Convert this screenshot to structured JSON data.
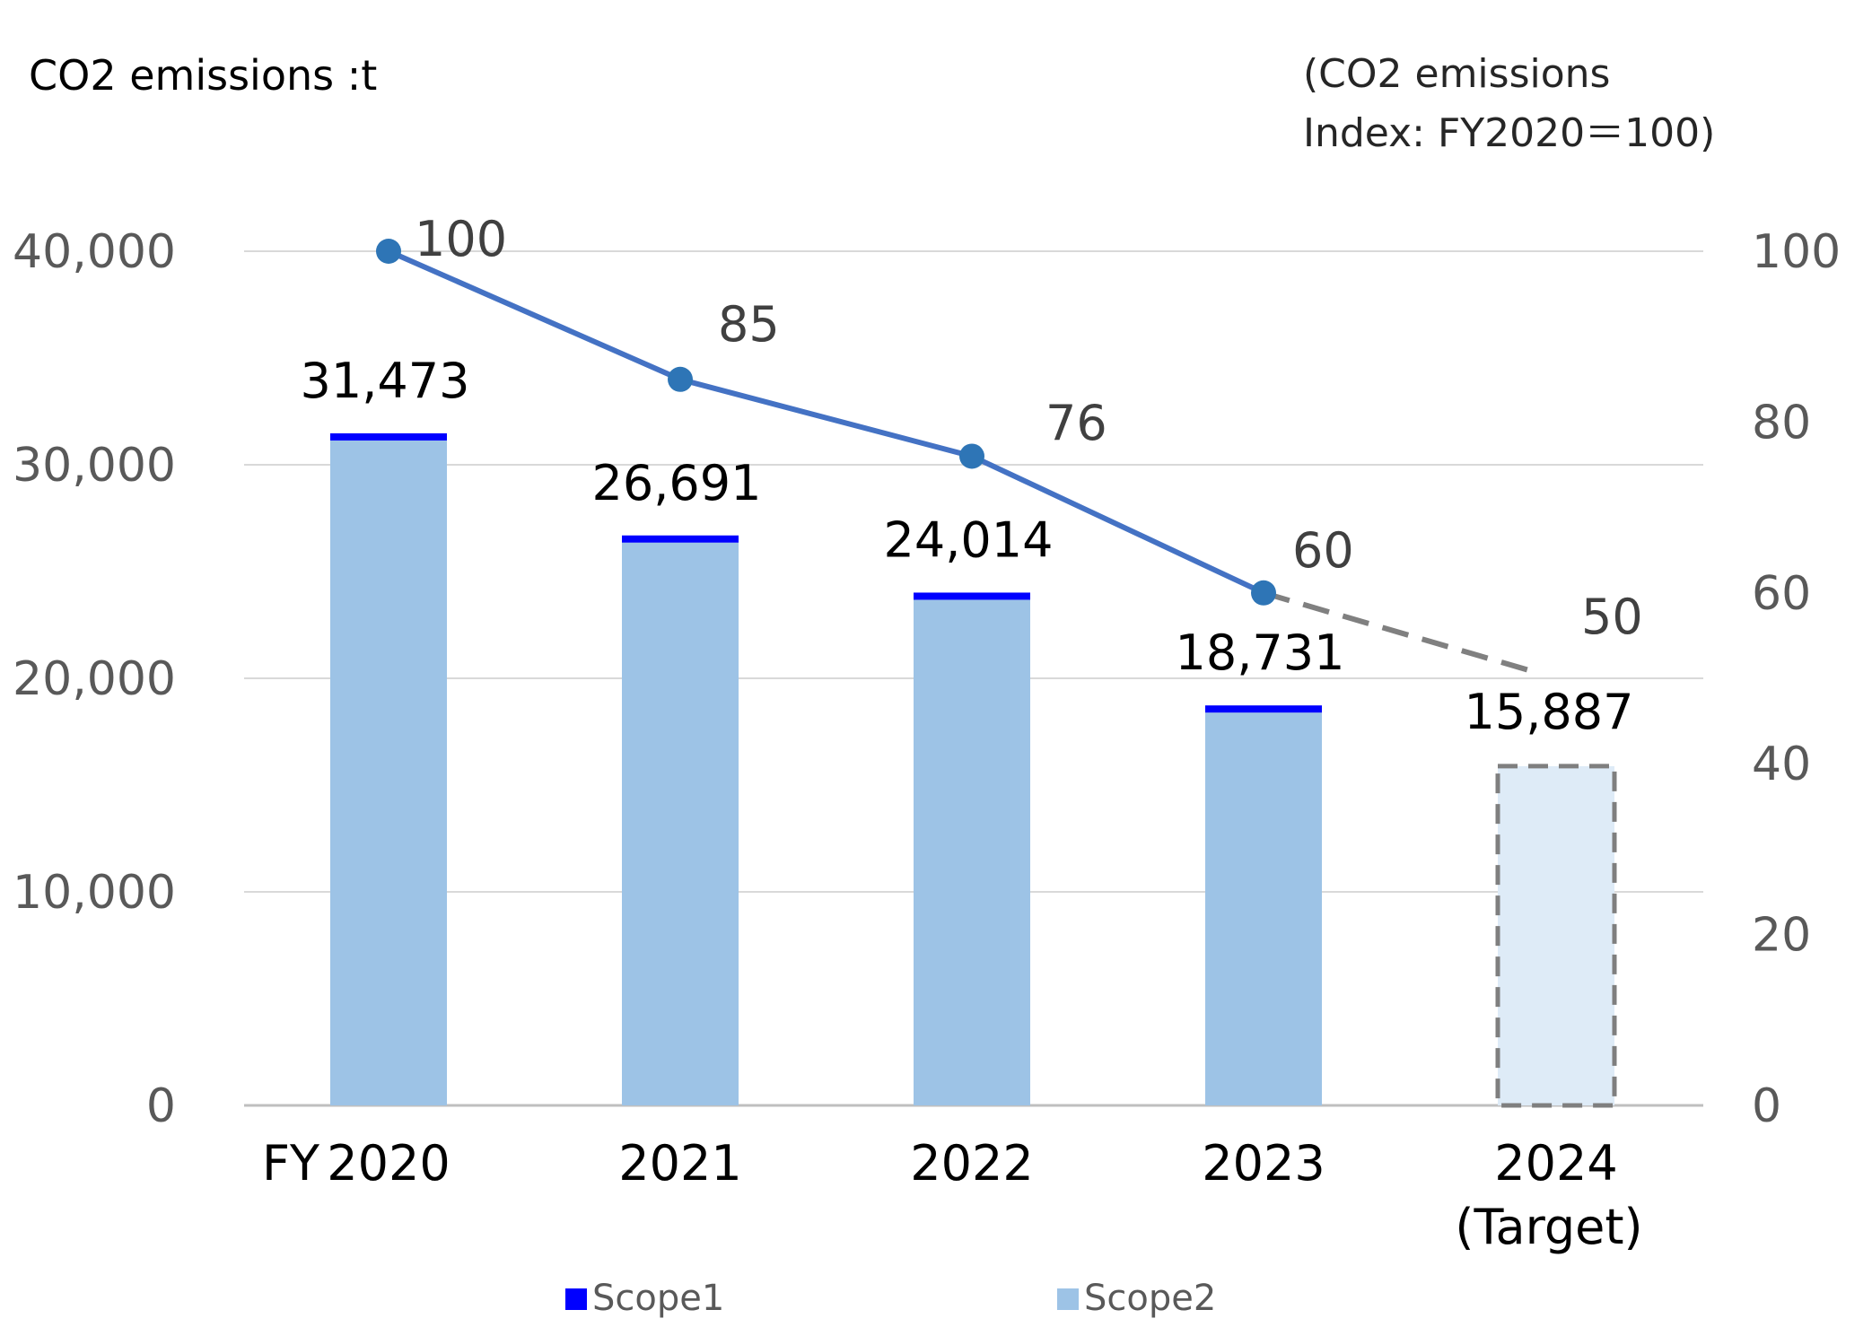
{
  "chart_data": {
    "type": "bar",
    "title": "CO2 emissions :t",
    "right_axis_title": [
      "(CO2 emissions",
      "Index: FY2020＝100)"
    ],
    "x_prefix": "FY",
    "categories": [
      "2020",
      "2021",
      "2022",
      "2023",
      "2024"
    ],
    "category_sublabels": [
      "",
      "",
      "",
      "",
      "(Target)"
    ],
    "totals": [
      31473,
      26691,
      24014,
      18731,
      15887
    ],
    "total_labels": [
      "31,473",
      "26,691",
      "24,014",
      "18,731",
      "15,887"
    ],
    "series": [
      {
        "name": "Scope1",
        "color": "#0000FF",
        "values": [
          400,
          400,
          400,
          400,
          0
        ]
      },
      {
        "name": "Scope2",
        "color": "#9DC3E6",
        "values": [
          31073,
          26291,
          23614,
          18331,
          15887
        ]
      }
    ],
    "target_bar_color": "#DEEBF7",
    "target_border_color": "#7F7F7F",
    "ylim": [
      0,
      40000
    ],
    "yticks": [
      0,
      10000,
      20000,
      30000,
      40000
    ],
    "ytick_labels": [
      "0",
      "10,000",
      "20,000",
      "30,000",
      "40,000"
    ],
    "index_series": {
      "values": [
        100,
        85,
        76,
        60,
        50
      ],
      "labels": [
        "100",
        "85",
        "76",
        "60",
        "50"
      ],
      "color": "#4472C4",
      "marker_color": "#2E75B6",
      "target_line_color": "#808080"
    },
    "y2lim": [
      0,
      100
    ],
    "y2ticks": [
      0,
      20,
      40,
      60,
      80,
      100
    ],
    "grid": true,
    "legend_position": "bottom"
  }
}
